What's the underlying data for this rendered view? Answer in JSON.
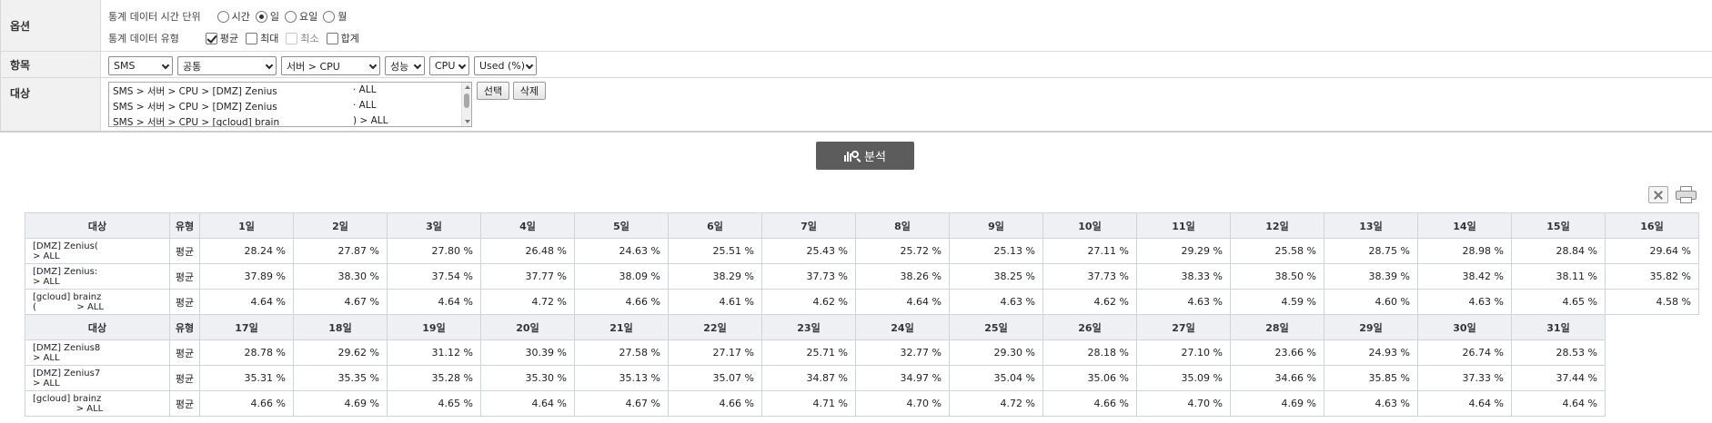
{
  "options": {
    "label": "옵션",
    "time_unit": {
      "label": "통계 데이터 시간 단위",
      "choices": [
        {
          "label": "시간",
          "selected": false
        },
        {
          "label": "일",
          "selected": true
        },
        {
          "label": "요일",
          "selected": false
        },
        {
          "label": "월",
          "selected": false
        }
      ]
    },
    "data_type": {
      "label": "통계 데이터 유형",
      "choices": [
        {
          "label": "평균",
          "checked": true,
          "disabled": false
        },
        {
          "label": "최대",
          "checked": false,
          "disabled": false
        },
        {
          "label": "최소",
          "checked": false,
          "disabled": true
        },
        {
          "label": "합계",
          "checked": false,
          "disabled": false
        }
      ]
    }
  },
  "item": {
    "label": "항목",
    "selects": [
      "SMS",
      "공통",
      "서버 > CPU",
      "성능",
      "CPU",
      "Used (%)"
    ]
  },
  "target": {
    "label": "대상",
    "list": [
      {
        "text": "SMS > 서버 > CPU > [DMZ] Zenius",
        "tail": "· ALL"
      },
      {
        "text": "SMS > 서버 > CPU > [DMZ] Zenius",
        "tail": "· ALL"
      },
      {
        "text": "SMS > 서버 > CPU > [gcloud] brain",
        "tail": ") > ALL"
      }
    ],
    "select_button": "선택",
    "delete_button": "삭제"
  },
  "analyze_button": "분석",
  "toolbar_icons": [
    "excel-icon",
    "print-icon"
  ],
  "table": {
    "col_target": "대상",
    "col_type": "유형",
    "block1": {
      "days": [
        "1일",
        "2일",
        "3일",
        "4일",
        "5일",
        "6일",
        "7일",
        "8일",
        "9일",
        "10일",
        "11일",
        "12일",
        "13일",
        "14일",
        "15일",
        "16일"
      ],
      "rows": [
        {
          "target1": "[DMZ] Zenius(",
          "target2": "> ALL",
          "type": "평균",
          "values": [
            "28.24 %",
            "27.87 %",
            "27.80 %",
            "26.48 %",
            "24.63 %",
            "25.51 %",
            "25.43 %",
            "25.72 %",
            "25.13 %",
            "27.11 %",
            "29.29 %",
            "25.58 %",
            "28.75 %",
            "28.98 %",
            "28.84 %",
            "29.64 %"
          ]
        },
        {
          "target1": "[DMZ] Zenius:",
          "target2": "> ALL",
          "type": "평균",
          "values": [
            "37.89 %",
            "38.30 %",
            "37.54 %",
            "37.77 %",
            "38.09 %",
            "38.29 %",
            "37.73 %",
            "38.26 %",
            "38.25 %",
            "37.73 %",
            "38.33 %",
            "38.50 %",
            "38.39 %",
            "38.42 %",
            "38.11 %",
            "35.82 %"
          ]
        },
        {
          "target1": "[gcloud] brainz",
          "target2": "(              > ALL",
          "type": "평균",
          "values": [
            "4.64 %",
            "4.67 %",
            "4.64 %",
            "4.72 %",
            "4.66 %",
            "4.61 %",
            "4.62 %",
            "4.64 %",
            "4.63 %",
            "4.62 %",
            "4.63 %",
            "4.59 %",
            "4.60 %",
            "4.63 %",
            "4.65 %",
            "4.58 %"
          ]
        }
      ]
    },
    "block2": {
      "days": [
        "17일",
        "18일",
        "19일",
        "20일",
        "21일",
        "22일",
        "23일",
        "24일",
        "25일",
        "26일",
        "27일",
        "28일",
        "29일",
        "30일",
        "31일"
      ],
      "rows": [
        {
          "target1": "[DMZ] Zenius8",
          "target2": "> ALL",
          "type": "평균",
          "values": [
            "28.78 %",
            "29.62 %",
            "31.12 %",
            "30.39 %",
            "27.58 %",
            "27.17 %",
            "25.71 %",
            "32.77 %",
            "29.30 %",
            "28.18 %",
            "27.10 %",
            "23.66 %",
            "24.93 %",
            "26.74 %",
            "28.53 %"
          ]
        },
        {
          "target1": "[DMZ] Zenius7",
          "target2": "> ALL",
          "type": "평균",
          "values": [
            "35.31 %",
            "35.35 %",
            "35.28 %",
            "35.30 %",
            "35.13 %",
            "35.07 %",
            "34.87 %",
            "34.97 %",
            "35.04 %",
            "35.06 %",
            "35.09 %",
            "34.66 %",
            "35.85 %",
            "37.33 %",
            "37.44 %"
          ]
        },
        {
          "target1": "[gcloud] brainz",
          "target2": "               > ALL",
          "type": "평균",
          "values": [
            "4.66 %",
            "4.69 %",
            "4.65 %",
            "4.64 %",
            "4.67 %",
            "4.66 %",
            "4.71 %",
            "4.70 %",
            "4.72 %",
            "4.66 %",
            "4.70 %",
            "4.69 %",
            "4.63 %",
            "4.64 %",
            "4.64 %"
          ]
        }
      ]
    }
  }
}
